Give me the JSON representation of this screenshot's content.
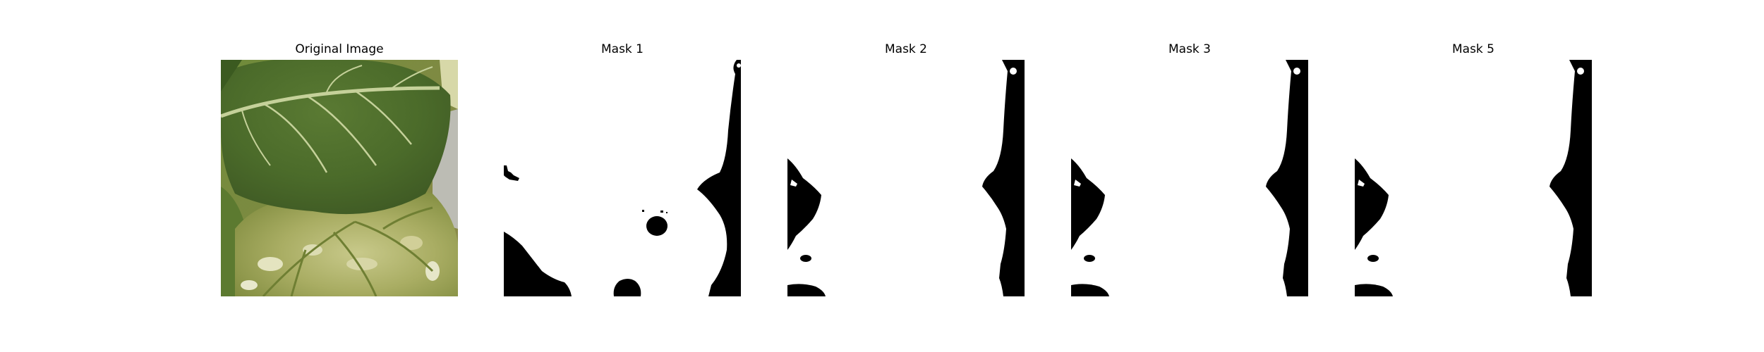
{
  "figure": {
    "panels": [
      {
        "title": "Original Image",
        "kind": "photo"
      },
      {
        "title": "Mask 1",
        "kind": "mask"
      },
      {
        "title": "Mask 2",
        "kind": "mask"
      },
      {
        "title": "Mask 3",
        "kind": "mask"
      },
      {
        "title": "Mask 5",
        "kind": "mask"
      }
    ],
    "colors": {
      "background": "#ffffff",
      "mask_foreground": "#ffffff",
      "mask_background": "#000000",
      "leaf_dark": "#4f6b2a",
      "leaf_light": "#b9bf7c"
    }
  }
}
